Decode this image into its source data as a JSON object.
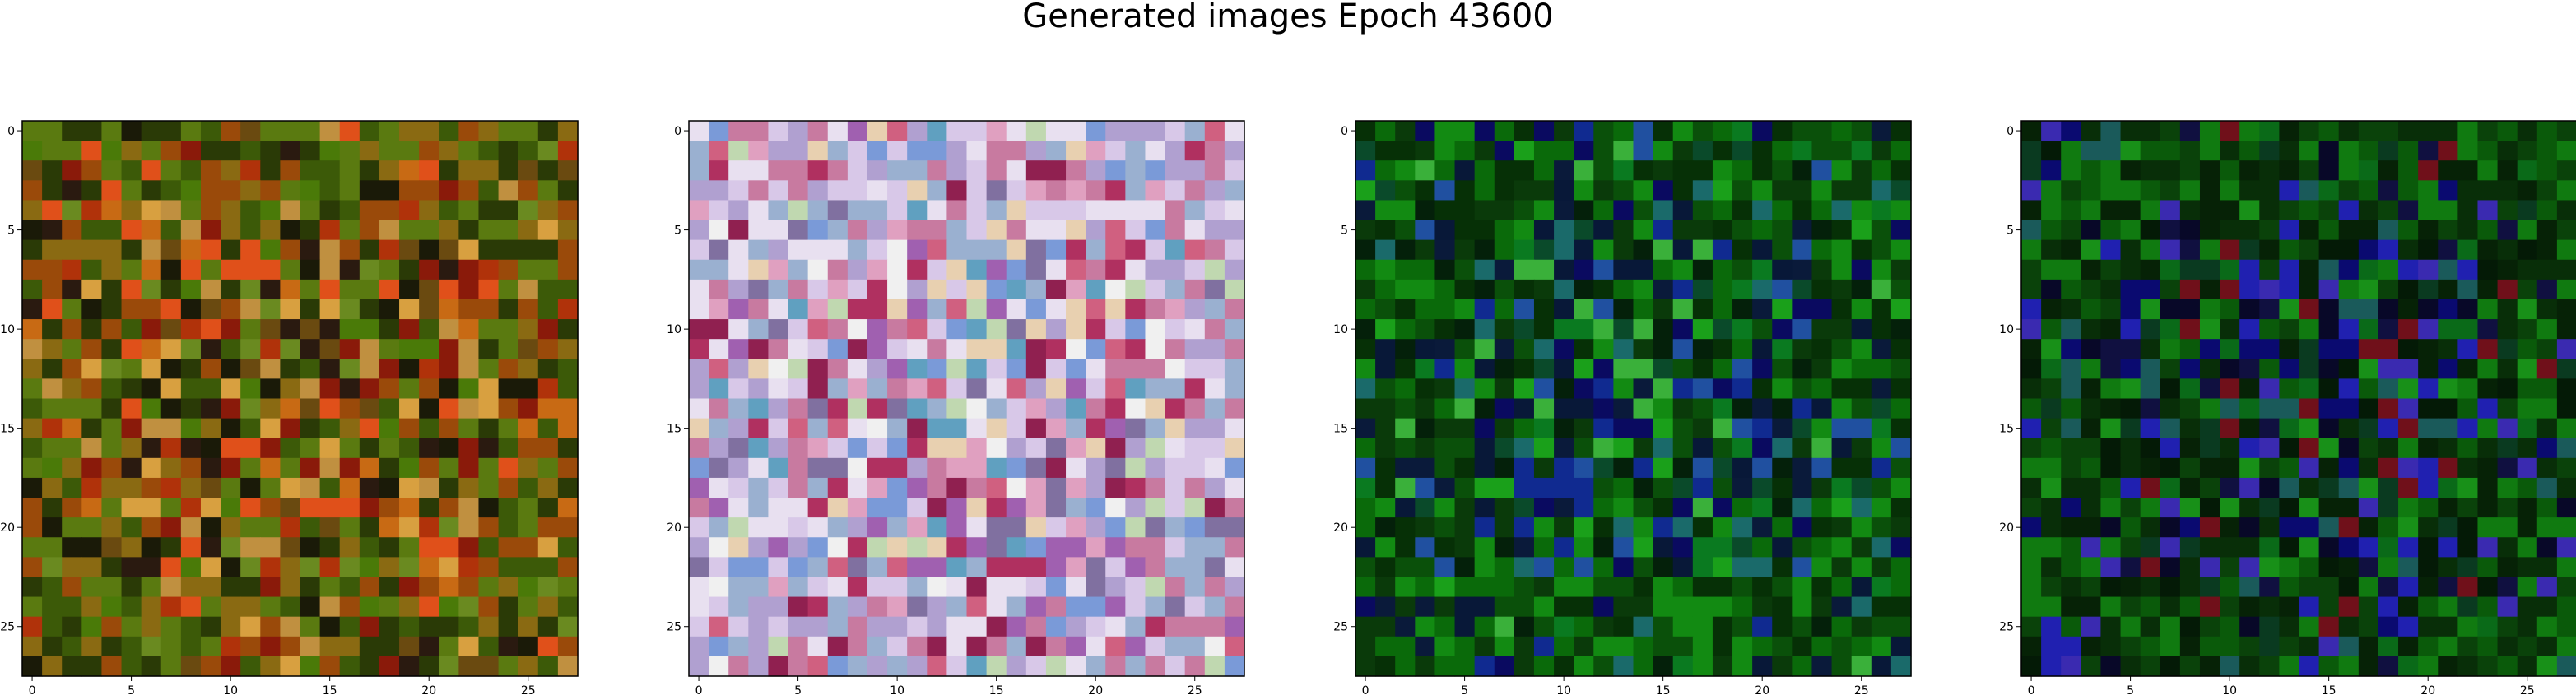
{
  "figure": {
    "title": "Generated images Epoch 43600"
  },
  "axes": {
    "x_ticks": [
      "0",
      "5",
      "10",
      "15",
      "20",
      "25"
    ],
    "y_ticks": [
      "0",
      "5",
      "10",
      "15",
      "20",
      "25"
    ],
    "tick_values": [
      0,
      5,
      10,
      15,
      20,
      25
    ],
    "grid_size": 28
  },
  "panels": [
    {
      "name": "generated-image-1",
      "palette": "earth",
      "seed": 11
    },
    {
      "name": "generated-image-2",
      "palette": "pastel",
      "seed": 23
    },
    {
      "name": "generated-image-3",
      "palette": "green-blue",
      "seed": 37
    },
    {
      "name": "generated-image-4",
      "palette": "green-blue-dark",
      "seed": 51
    }
  ],
  "palettes": {
    "earth": [
      "#8a6a12",
      "#5a7a10",
      "#3c5a08",
      "#2a3a06",
      "#9a4a0a",
      "#c86a14",
      "#d8a040",
      "#6a8a20",
      "#1a1a08",
      "#8a1a0a",
      "#b0320a",
      "#4a7a08",
      "#6a4a10",
      "#c09040",
      "#2a1a10",
      "#e0501a"
    ],
    "pastel": [
      "#d8c8e8",
      "#b0a0d0",
      "#e8e0f0",
      "#c87aa0",
      "#9ab0d0",
      "#f0f0f0",
      "#d06080",
      "#a060b0",
      "#7a9ad8",
      "#c0d8b0",
      "#e0a0c0",
      "#8070a0",
      "#b03060",
      "#60a0c0",
      "#e8d0b0",
      "#902050"
    ],
    "green-blue": [
      "#0a6a0a",
      "#0a500a",
      "#0a3a0a",
      "#128a12",
      "#063006",
      "#0a0a60",
      "#102a90",
      "#0a1a3a",
      "#1a6a6a",
      "#1aa01a",
      "#04200a",
      "#2050a0",
      "#0a7a20",
      "#081838",
      "#3ab03a",
      "#0a4a2a"
    ],
    "green-blue-dark": [
      "#0a5a0a",
      "#0a420a",
      "#082e08",
      "#107a10",
      "#062206",
      "#0a0a70",
      "#2020b0",
      "#080828",
      "#1a5a5a",
      "#189018",
      "#041a06",
      "#3a2ab0",
      "#0a6a18",
      "#101040",
      "#70101a",
      "#0a3a20"
    ]
  }
}
